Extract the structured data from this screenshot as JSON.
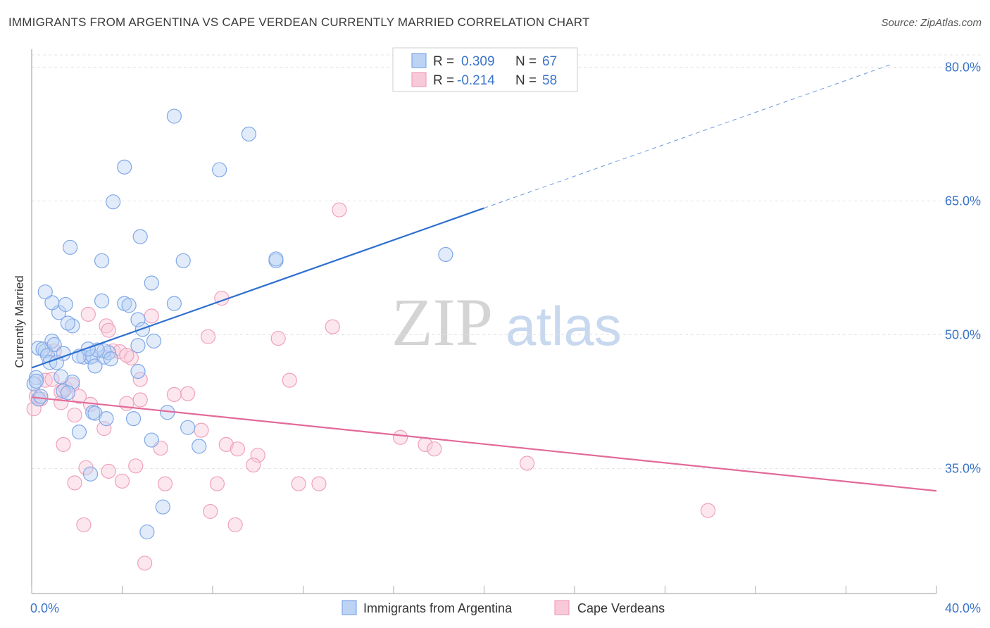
{
  "title": "IMMIGRANTS FROM ARGENTINA VS CAPE VERDEAN CURRENTLY MARRIED CORRELATION CHART",
  "source": "Source: ZipAtlas.com",
  "watermark": {
    "zip": "ZIP",
    "atlas": "atlas"
  },
  "chart_data": {
    "type": "scatter",
    "title": "IMMIGRANTS FROM ARGENTINA VS CAPE VERDEAN CURRENTLY MARRIED CORRELATION CHART",
    "xlabel": "",
    "ylabel": "Currently Married",
    "xlim": [
      0,
      40
    ],
    "ylim": [
      21,
      82
    ],
    "x_tick_labels": [
      {
        "value": 0,
        "label": "0.0%"
      },
      {
        "value": 40,
        "label": "40.0%"
      }
    ],
    "y_tick_labels": [
      {
        "value": 80,
        "label": "80.0%"
      },
      {
        "value": 65,
        "label": "65.0%"
      },
      {
        "value": 50,
        "label": "50.0%"
      },
      {
        "value": 35,
        "label": "35.0%"
      }
    ],
    "grid": true,
    "legend": {
      "placement": "top-center",
      "entries": [
        {
          "r_label": "R =",
          "r_value": "0.309",
          "n_label": "N =",
          "n_value": "67"
        },
        {
          "r_label": "R =",
          "r_value": "-0.214",
          "n_label": "N =",
          "n_value": "58"
        }
      ]
    },
    "bottom_legend": [
      "Immigrants from Argentina",
      "Cape Verdeans"
    ],
    "series": [
      {
        "name": "Immigrants from Argentina",
        "color": "#7fa8e8",
        "fill": "#bcd3f3",
        "trend_color": "#2d6fcf",
        "trend": {
          "x0": 0,
          "y0": 46.3,
          "x1": 20,
          "y1": 64.2,
          "dashed_to_x": 38,
          "dashed_to_y": 80.3
        },
        "points": [
          [
            0.3,
            48.5
          ],
          [
            0.6,
            48.2
          ],
          [
            0.5,
            48.4
          ],
          [
            0.7,
            47.7
          ],
          [
            0.9,
            49.3
          ],
          [
            1.0,
            48.9
          ],
          [
            0.8,
            46.9
          ],
          [
            1.4,
            47.9
          ],
          [
            1.2,
            52.5
          ],
          [
            1.8,
            51.0
          ],
          [
            1.6,
            51.3
          ],
          [
            1.8,
            44.7
          ],
          [
            1.3,
            45.3
          ],
          [
            0.2,
            45.2
          ],
          [
            0.1,
            44.5
          ],
          [
            0.2,
            44.8
          ],
          [
            0.3,
            42.8
          ],
          [
            0.4,
            43.1
          ],
          [
            1.1,
            46.9
          ],
          [
            2.3,
            47.5
          ],
          [
            2.6,
            47.5
          ],
          [
            2.1,
            47.6
          ],
          [
            2.7,
            47.6
          ],
          [
            2.8,
            46.5
          ],
          [
            3.2,
            47.5
          ],
          [
            3.4,
            48.0
          ],
          [
            3.2,
            48.2
          ],
          [
            3.5,
            47.3
          ],
          [
            2.9,
            48.3
          ],
          [
            2.5,
            48.4
          ],
          [
            1.4,
            43.7
          ],
          [
            1.6,
            43.5
          ],
          [
            2.7,
            41.3
          ],
          [
            2.8,
            41.2
          ],
          [
            3.3,
            40.6
          ],
          [
            4.5,
            40.6
          ],
          [
            2.1,
            39.1
          ],
          [
            5.3,
            38.2
          ],
          [
            6.0,
            41.3
          ],
          [
            6.9,
            39.6
          ],
          [
            7.4,
            37.5
          ],
          [
            2.6,
            34.4
          ],
          [
            5.8,
            30.7
          ],
          [
            5.1,
            27.9
          ],
          [
            3.1,
            53.8
          ],
          [
            4.1,
            53.5
          ],
          [
            4.3,
            53.3
          ],
          [
            6.3,
            53.5
          ],
          [
            4.7,
            51.7
          ],
          [
            4.9,
            50.6
          ],
          [
            4.7,
            48.8
          ],
          [
            5.4,
            49.3
          ],
          [
            4.7,
            45.9
          ],
          [
            0.9,
            53.6
          ],
          [
            0.6,
            54.8
          ],
          [
            1.5,
            53.4
          ],
          [
            5.3,
            55.8
          ],
          [
            3.1,
            58.3
          ],
          [
            6.7,
            58.3
          ],
          [
            10.8,
            58.3
          ],
          [
            1.7,
            59.8
          ],
          [
            4.8,
            61.0
          ],
          [
            3.6,
            64.9
          ],
          [
            4.1,
            68.8
          ],
          [
            8.3,
            68.5
          ],
          [
            6.3,
            74.5
          ],
          [
            9.6,
            72.5
          ],
          [
            18.3,
            59.0
          ],
          [
            10.8,
            58.5
          ]
        ],
        "radius": 10
      },
      {
        "name": "Cape Verdeans",
        "color": "#f0a0bc",
        "fill": "#f8c9d9",
        "trend_color": "#e26a98",
        "trend": {
          "x0": 0,
          "y0": 43.0,
          "x1": 40,
          "y1": 32.5
        },
        "points": [
          [
            0.1,
            41.7
          ],
          [
            0.2,
            43.1
          ],
          [
            0.4,
            42.8
          ],
          [
            0.6,
            44.9
          ],
          [
            0.9,
            45.0
          ],
          [
            1.3,
            43.6
          ],
          [
            1.5,
            44.0
          ],
          [
            1.8,
            44.4
          ],
          [
            2.1,
            43.1
          ],
          [
            1.9,
            41.0
          ],
          [
            1.3,
            42.4
          ],
          [
            2.6,
            42.2
          ],
          [
            1.0,
            48.2
          ],
          [
            3.6,
            48.2
          ],
          [
            3.9,
            48.1
          ],
          [
            4.4,
            47.4
          ],
          [
            4.2,
            47.7
          ],
          [
            2.5,
            52.3
          ],
          [
            3.3,
            51.0
          ],
          [
            3.4,
            50.5
          ],
          [
            5.3,
            52.1
          ],
          [
            7.8,
            49.8
          ],
          [
            10.9,
            49.6
          ],
          [
            13.3,
            50.9
          ],
          [
            8.4,
            54.1
          ],
          [
            11.4,
            44.9
          ],
          [
            6.3,
            43.3
          ],
          [
            6.9,
            43.4
          ],
          [
            4.2,
            42.3
          ],
          [
            4.8,
            42.7
          ],
          [
            4.8,
            45.0
          ],
          [
            2.4,
            35.1
          ],
          [
            3.4,
            34.7
          ],
          [
            3.2,
            39.5
          ],
          [
            7.5,
            39.3
          ],
          [
            5.7,
            37.3
          ],
          [
            8.6,
            37.7
          ],
          [
            9.1,
            37.2
          ],
          [
            10.0,
            36.5
          ],
          [
            9.8,
            35.4
          ],
          [
            16.3,
            38.5
          ],
          [
            17.4,
            37.7
          ],
          [
            17.8,
            37.2
          ],
          [
            21.9,
            35.6
          ],
          [
            13.6,
            64.0
          ],
          [
            1.4,
            37.7
          ],
          [
            1.9,
            33.4
          ],
          [
            4.0,
            33.6
          ],
          [
            5.9,
            33.3
          ],
          [
            8.2,
            33.3
          ],
          [
            11.8,
            33.3
          ],
          [
            12.7,
            33.3
          ],
          [
            2.3,
            28.7
          ],
          [
            7.9,
            30.2
          ],
          [
            9.0,
            28.7
          ],
          [
            29.9,
            30.3
          ],
          [
            5.0,
            24.4
          ],
          [
            4.6,
            35.3
          ]
        ],
        "radius": 10
      }
    ]
  }
}
